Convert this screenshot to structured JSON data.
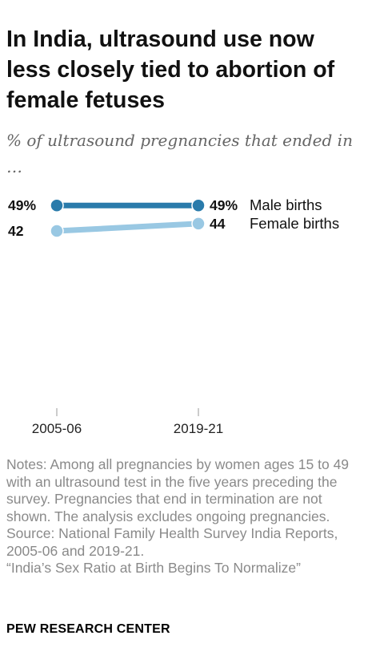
{
  "title": "In India, ultrasound use now less closely tied to abortion of female fetuses",
  "subtitle": "% of ultrasound pregnancies that ended in …",
  "chart_data": {
    "type": "line",
    "x": [
      "2005-06",
      "2019-21"
    ],
    "series": [
      {
        "name": "Male births",
        "values": [
          49,
          49
        ],
        "labels": [
          "49%",
          "49%"
        ],
        "color": "#2a7bab"
      },
      {
        "name": "Female births",
        "values": [
          42,
          44
        ],
        "labels": [
          "42",
          "44"
        ],
        "color": "#99c8e3"
      }
    ],
    "ylim": [
      0,
      53
    ],
    "grid": false,
    "legend": "end-of-line labels"
  },
  "notes": {
    "note": "Notes: Among all pregnancies by women ages 15 to 49 with an ultrasound test in the five years preceding the survey. Pregnancies that end in termination are not shown. The analysis excludes ongoing pregnancies.",
    "source": "Source: National Family Health Survey India Reports, 2005-06 and 2019-21.",
    "report": "“India’s Sex Ratio at Birth Begins To Normalize”"
  },
  "brand": "PEW RESEARCH CENTER"
}
